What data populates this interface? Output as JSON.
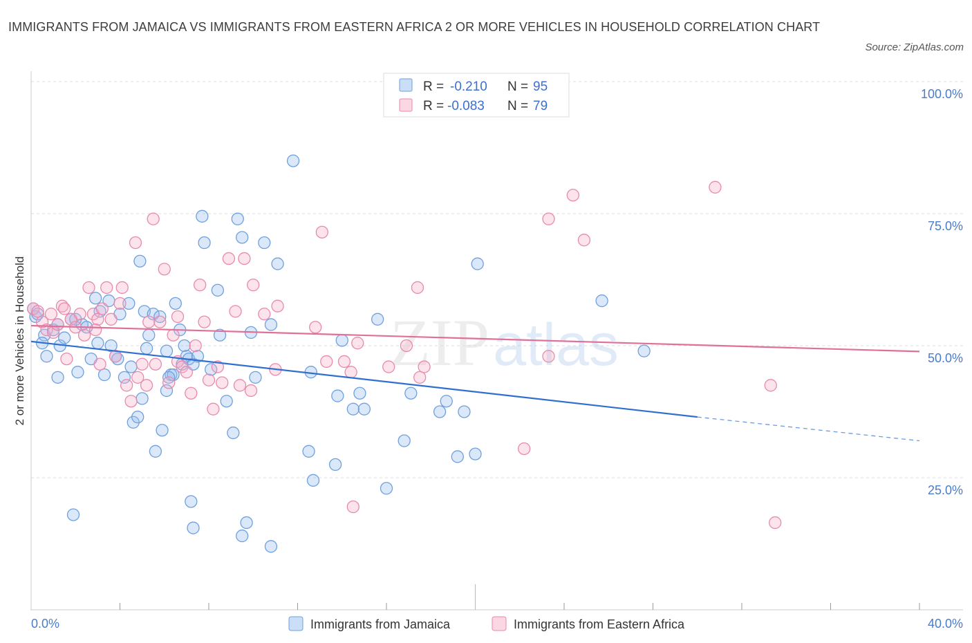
{
  "title": "IMMIGRANTS FROM JAMAICA VS IMMIGRANTS FROM EASTERN AFRICA 2 OR MORE VEHICLES IN HOUSEHOLD CORRELATION CHART",
  "source": "Source: ZipAtlas.com",
  "watermark": {
    "zip": "ZIP",
    "atlas": "atlas"
  },
  "colors": {
    "jamaica_fill": "rgba(150,190,240,0.35)",
    "jamaica_stroke": "#6fa0de",
    "jamaica_line": "#2f6fd0",
    "eafrica_fill": "rgba(245,175,200,0.35)",
    "eafrica_stroke": "#e88aab",
    "eafrica_line": "#e0709a",
    "tick_text": "#4a7cc9"
  },
  "legend": {
    "rows": [
      {
        "r_label": "R = ",
        "r_value": "-0.210",
        "n_label": "N = ",
        "n_value": "95"
      },
      {
        "r_label": "R = ",
        "r_value": "-0.083",
        "n_label": "N = ",
        "n_value": "79"
      }
    ]
  },
  "bottom_legend": [
    "Immigrants from Jamaica",
    "Immigrants from Eastern Africa"
  ],
  "chart_data": {
    "type": "scatter",
    "ylabel": "2 or more Vehicles in Household",
    "xlim": [
      0,
      40
    ],
    "ylim": [
      0,
      100
    ],
    "x_tick_labels": [
      {
        "x": 0,
        "label": "0.0%"
      },
      {
        "x": 40,
        "label": "40.0%"
      }
    ],
    "y_tick_labels": [
      {
        "y": 100,
        "label": "100.0%"
      },
      {
        "y": 75,
        "label": "75.0%"
      },
      {
        "y": 50,
        "label": "50.0%"
      },
      {
        "y": 25,
        "label": "25.0%"
      }
    ],
    "grid": true,
    "series": [
      {
        "name": "Immigrants from Jamaica",
        "trend": {
          "x0": 0,
          "y0": 50.8,
          "x1": 30,
          "y1": 36.5,
          "dash_x1": 40,
          "dash_y1": 32.0
        },
        "points": [
          [
            0.1,
            57.0
          ],
          [
            0.2,
            55.5
          ],
          [
            0.6,
            52.0
          ],
          [
            0.5,
            50.5
          ],
          [
            0.7,
            48.0
          ],
          [
            1.0,
            53.0
          ],
          [
            1.2,
            54.0
          ],
          [
            1.3,
            50.0
          ],
          [
            1.5,
            51.5
          ],
          [
            1.2,
            44.0
          ],
          [
            1.8,
            55.0
          ],
          [
            2.1,
            45.0
          ],
          [
            2.3,
            54.0
          ],
          [
            2.5,
            53.5
          ],
          [
            2.7,
            47.5
          ],
          [
            2.9,
            59.0
          ],
          [
            3.1,
            56.5
          ],
          [
            3.3,
            44.5
          ],
          [
            3.5,
            58.5
          ],
          [
            3.6,
            50.0
          ],
          [
            3.8,
            48.0
          ],
          [
            4.0,
            56.0
          ],
          [
            4.2,
            44.0
          ],
          [
            4.4,
            58.0
          ],
          [
            4.5,
            46.0
          ],
          [
            4.6,
            35.5
          ],
          [
            4.8,
            36.5
          ],
          [
            4.9,
            66.0
          ],
          [
            5.1,
            56.5
          ],
          [
            5.2,
            49.5
          ],
          [
            5.3,
            52.0
          ],
          [
            5.5,
            56.0
          ],
          [
            5.6,
            30.0
          ],
          [
            5.8,
            55.5
          ],
          [
            5.9,
            34.0
          ],
          [
            6.1,
            49.0
          ],
          [
            6.1,
            41.5
          ],
          [
            6.3,
            44.5
          ],
          [
            6.4,
            44.5
          ],
          [
            6.5,
            58.0
          ],
          [
            6.7,
            53.0
          ],
          [
            6.8,
            46.5
          ],
          [
            6.9,
            50.0
          ],
          [
            7.0,
            48.0
          ],
          [
            7.1,
            47.5
          ],
          [
            7.3,
            46.5
          ],
          [
            7.5,
            48.0
          ],
          [
            7.7,
            74.5
          ],
          [
            7.8,
            69.5
          ],
          [
            8.1,
            45.5
          ],
          [
            8.4,
            60.5
          ],
          [
            8.5,
            52.0
          ],
          [
            8.8,
            39.5
          ],
          [
            9.1,
            33.5
          ],
          [
            9.3,
            74.0
          ],
          [
            9.5,
            70.5
          ],
          [
            9.7,
            16.5
          ],
          [
            9.9,
            52.5
          ],
          [
            10.1,
            44.0
          ],
          [
            10.5,
            69.5
          ],
          [
            10.8,
            54.0
          ],
          [
            11.1,
            65.5
          ],
          [
            11.8,
            85.0
          ],
          [
            12.5,
            30.0
          ],
          [
            12.6,
            45.0
          ],
          [
            12.7,
            24.5
          ],
          [
            13.7,
            27.5
          ],
          [
            13.8,
            40.5
          ],
          [
            14.0,
            51.0
          ],
          [
            14.5,
            38.0
          ],
          [
            14.8,
            41.0
          ],
          [
            15.0,
            38.0
          ],
          [
            15.6,
            55.0
          ],
          [
            16.0,
            23.0
          ],
          [
            16.8,
            32.0
          ],
          [
            17.1,
            41.0
          ],
          [
            18.4,
            37.5
          ],
          [
            18.7,
            39.5
          ],
          [
            19.2,
            29.0
          ],
          [
            19.5,
            37.5
          ],
          [
            20.0,
            29.5
          ],
          [
            20.1,
            65.5
          ],
          [
            25.7,
            58.5
          ],
          [
            27.6,
            49.0
          ],
          [
            7.3,
            15.5
          ],
          [
            7.2,
            20.5
          ],
          [
            9.5,
            14.0
          ],
          [
            10.8,
            12.0
          ],
          [
            1.9,
            18.0
          ],
          [
            0.3,
            56.0
          ],
          [
            2.0,
            55.0
          ],
          [
            3.0,
            50.5
          ],
          [
            3.9,
            47.5
          ],
          [
            6.2,
            44.0
          ],
          [
            5.0,
            40.0
          ]
        ]
      },
      {
        "name": "Immigrants from Eastern Africa",
        "trend": {
          "x0": 0,
          "y0": 53.8,
          "x1": 40,
          "y1": 48.9
        },
        "points": [
          [
            0.1,
            57.0
          ],
          [
            0.3,
            56.5
          ],
          [
            0.5,
            54.5
          ],
          [
            0.7,
            53.0
          ],
          [
            0.9,
            56.0
          ],
          [
            1.0,
            52.5
          ],
          [
            1.2,
            54.0
          ],
          [
            1.4,
            57.5
          ],
          [
            1.6,
            47.5
          ],
          [
            1.8,
            55.0
          ],
          [
            2.0,
            53.5
          ],
          [
            2.2,
            56.0
          ],
          [
            2.4,
            52.0
          ],
          [
            2.6,
            61.0
          ],
          [
            2.8,
            56.0
          ],
          [
            3.0,
            55.0
          ],
          [
            3.2,
            57.0
          ],
          [
            3.4,
            61.0
          ],
          [
            3.6,
            55.0
          ],
          [
            3.8,
            48.0
          ],
          [
            4.0,
            58.0
          ],
          [
            4.1,
            61.0
          ],
          [
            4.3,
            42.5
          ],
          [
            4.5,
            39.5
          ],
          [
            4.7,
            69.5
          ],
          [
            5.0,
            46.5
          ],
          [
            5.2,
            42.5
          ],
          [
            5.3,
            54.5
          ],
          [
            5.5,
            74.0
          ],
          [
            5.6,
            46.5
          ],
          [
            5.8,
            54.5
          ],
          [
            6.0,
            64.5
          ],
          [
            6.2,
            43.0
          ],
          [
            6.4,
            52.0
          ],
          [
            6.6,
            47.0
          ],
          [
            6.8,
            46.0
          ],
          [
            7.0,
            45.0
          ],
          [
            7.2,
            41.0
          ],
          [
            7.4,
            50.0
          ],
          [
            7.6,
            61.5
          ],
          [
            7.8,
            54.5
          ],
          [
            8.0,
            43.5
          ],
          [
            8.2,
            38.0
          ],
          [
            8.4,
            46.0
          ],
          [
            8.6,
            43.0
          ],
          [
            8.9,
            66.5
          ],
          [
            9.2,
            56.5
          ],
          [
            9.4,
            42.5
          ],
          [
            9.6,
            66.5
          ],
          [
            9.9,
            41.5
          ],
          [
            10.0,
            61.5
          ],
          [
            10.5,
            56.0
          ],
          [
            11.0,
            45.5
          ],
          [
            11.1,
            57.5
          ],
          [
            12.8,
            53.5
          ],
          [
            13.1,
            71.5
          ],
          [
            13.3,
            47.0
          ],
          [
            14.1,
            47.0
          ],
          [
            14.4,
            45.0
          ],
          [
            14.7,
            50.5
          ],
          [
            14.5,
            19.5
          ],
          [
            16.1,
            46.0
          ],
          [
            16.9,
            50.0
          ],
          [
            17.4,
            61.0
          ],
          [
            17.5,
            44.0
          ],
          [
            17.7,
            46.0
          ],
          [
            22.2,
            30.5
          ],
          [
            23.3,
            48.0
          ],
          [
            23.3,
            74.0
          ],
          [
            24.4,
            78.5
          ],
          [
            24.9,
            70.0
          ],
          [
            30.8,
            80.0
          ],
          [
            33.3,
            42.5
          ],
          [
            33.5,
            16.5
          ],
          [
            1.5,
            57.0
          ],
          [
            3.1,
            46.5
          ],
          [
            6.6,
            55.5
          ],
          [
            2.9,
            53.0
          ],
          [
            4.8,
            44.0
          ]
        ]
      }
    ]
  }
}
